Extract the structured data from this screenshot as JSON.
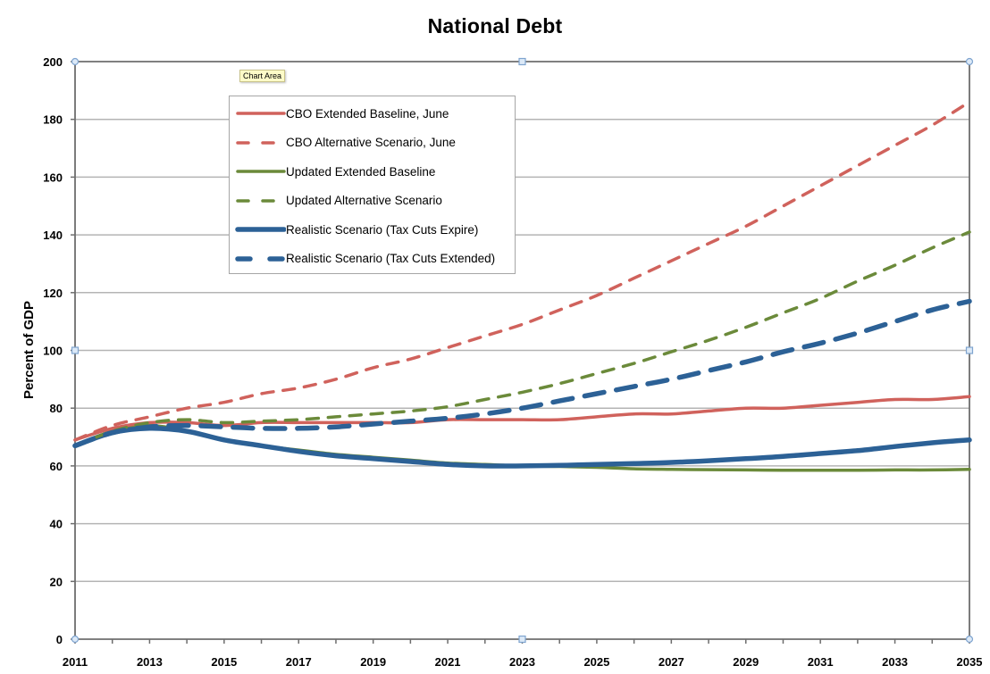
{
  "chart_data": {
    "type": "line",
    "title": "National Debt",
    "xlabel": "",
    "ylabel": "Percent of GDP",
    "ylim": [
      0,
      200
    ],
    "xlim": [
      2011,
      2035
    ],
    "yticks": [
      0,
      20,
      40,
      60,
      80,
      100,
      120,
      140,
      160,
      180,
      200
    ],
    "xtick_labels": [
      "2011",
      "2013",
      "2015",
      "2017",
      "2019",
      "2021",
      "2023",
      "2025",
      "2027",
      "2029",
      "2031",
      "2033",
      "2035"
    ],
    "grid": "horizontal",
    "legend_position": "top-left inside plot",
    "x": [
      2011,
      2012,
      2013,
      2014,
      2015,
      2016,
      2017,
      2018,
      2019,
      2020,
      2021,
      2022,
      2023,
      2024,
      2025,
      2026,
      2027,
      2028,
      2029,
      2030,
      2031,
      2032,
      2033,
      2034,
      2035
    ],
    "series": [
      {
        "name": "CBO Extended Baseline, June",
        "color": "#d0625c",
        "style": "solid",
        "values": [
          69,
          73,
          75,
          75,
          74,
          75,
          75,
          75,
          75,
          75,
          76,
          76,
          76,
          76,
          77,
          78,
          78,
          79,
          80,
          80,
          81,
          82,
          83,
          83,
          84
        ]
      },
      {
        "name": "CBO Alternative Scenario, June",
        "color": "#d0625c",
        "style": "dashed",
        "values": [
          69,
          74,
          77,
          80,
          82,
          85,
          87,
          90,
          94,
          97,
          101,
          105,
          109,
          114,
          119,
          125,
          131,
          137,
          143,
          150,
          157,
          164,
          171,
          178,
          186
        ]
      },
      {
        "name": "Updated Extended Baseline",
        "color": "#6b8a3a",
        "style": "solid",
        "values": [
          67,
          72,
          74,
          72,
          69,
          67,
          65.5,
          64,
          63,
          62,
          61,
          60.5,
          60,
          59.8,
          59.5,
          59,
          58.8,
          58.7,
          58.6,
          58.5,
          58.5,
          58.5,
          58.6,
          58.6,
          58.8
        ]
      },
      {
        "name": "Updated Alternative Scenario",
        "color": "#6b8a3a",
        "style": "dashed",
        "values": [
          67,
          72,
          75,
          76,
          75,
          75.5,
          76,
          77,
          78,
          79,
          80.5,
          83,
          85.5,
          88.5,
          92,
          95.5,
          99.5,
          103.5,
          108,
          113,
          118,
          124,
          129.5,
          135.5,
          141
        ]
      },
      {
        "name": "Realistic Scenario (Tax Cuts Expire)",
        "color": "#2c6196",
        "style": "solid-thick",
        "values": [
          67,
          71.5,
          73,
          72,
          69,
          67,
          65,
          63.5,
          62.5,
          61.5,
          60.5,
          60,
          60,
          60.2,
          60.5,
          60.8,
          61.2,
          61.8,
          62.5,
          63.3,
          64.3,
          65.3,
          66.7,
          68,
          69
        ]
      },
      {
        "name": "Realistic Scenario (Tax Cuts Extended)",
        "color": "#2c6196",
        "style": "dashed-thick",
        "values": [
          67,
          71.5,
          73.5,
          74,
          73.5,
          73,
          73,
          73.5,
          74.5,
          75.5,
          76.5,
          78,
          80,
          82.5,
          85,
          87.5,
          90,
          93,
          96,
          99.5,
          102.5,
          106,
          110,
          114,
          117
        ]
      }
    ]
  },
  "tooltip": {
    "text": "Chart Area"
  }
}
